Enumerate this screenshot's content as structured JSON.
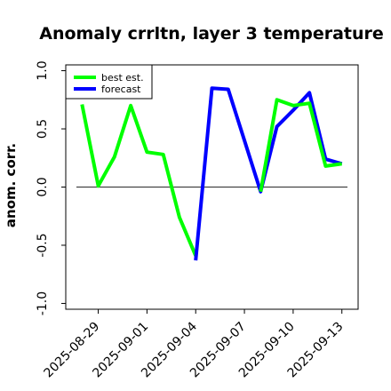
{
  "chart_data": {
    "type": "line",
    "title": "Anomaly crrltn, layer 3 temperature",
    "xlabel": "",
    "ylabel": "anom. corr.",
    "ylim": [
      -1.05,
      1.05
    ],
    "yticks": [
      -1.0,
      -0.5,
      0.0,
      0.5,
      1.0
    ],
    "ytick_labels": [
      "-1.0",
      "-0.5",
      "0.0",
      "0.5",
      "1.0"
    ],
    "xlim": [
      "2025-08-27",
      "2025-09-14"
    ],
    "xticks": [
      "2025-08-29",
      "2025-09-01",
      "2025-09-04",
      "2025-09-07",
      "2025-09-10",
      "2025-09-13"
    ],
    "highlight_tick": "2025-09-04",
    "tick_color": "#000000",
    "highlight_color": "#228B22",
    "reference_line": 0.0,
    "legend": {
      "location": "top-left"
    },
    "grid": false,
    "series": [
      {
        "name": "best est.",
        "color": "#00ff00",
        "x": [
          "2025-08-28",
          "2025-08-29",
          "2025-08-30",
          "2025-08-31",
          "2025-09-01",
          "2025-09-02",
          "2025-09-03",
          "2025-09-04"
        ],
        "y": [
          0.71,
          0.01,
          0.26,
          0.7,
          0.3,
          0.28,
          -0.26,
          -0.59
        ]
      },
      {
        "name": "forecast",
        "color": "#0000ff",
        "x": [
          "2025-09-04",
          "2025-09-05",
          "2025-09-06",
          "2025-09-07",
          "2025-09-08",
          "2025-09-09",
          "2025-09-10",
          "2025-09-11",
          "2025-09-12",
          "2025-09-13"
        ],
        "y": [
          -0.63,
          0.85,
          0.84,
          0.4,
          -0.04,
          0.52,
          0.66,
          0.81,
          0.24,
          0.2
        ]
      },
      {
        "name": "",
        "color": "#00ff00",
        "x": [
          "2025-09-08",
          "2025-09-09",
          "2025-09-10",
          "2025-09-11",
          "2025-09-12",
          "2025-09-13"
        ],
        "y": [
          -0.04,
          0.75,
          0.7,
          0.72,
          0.18,
          0.2
        ]
      }
    ]
  }
}
